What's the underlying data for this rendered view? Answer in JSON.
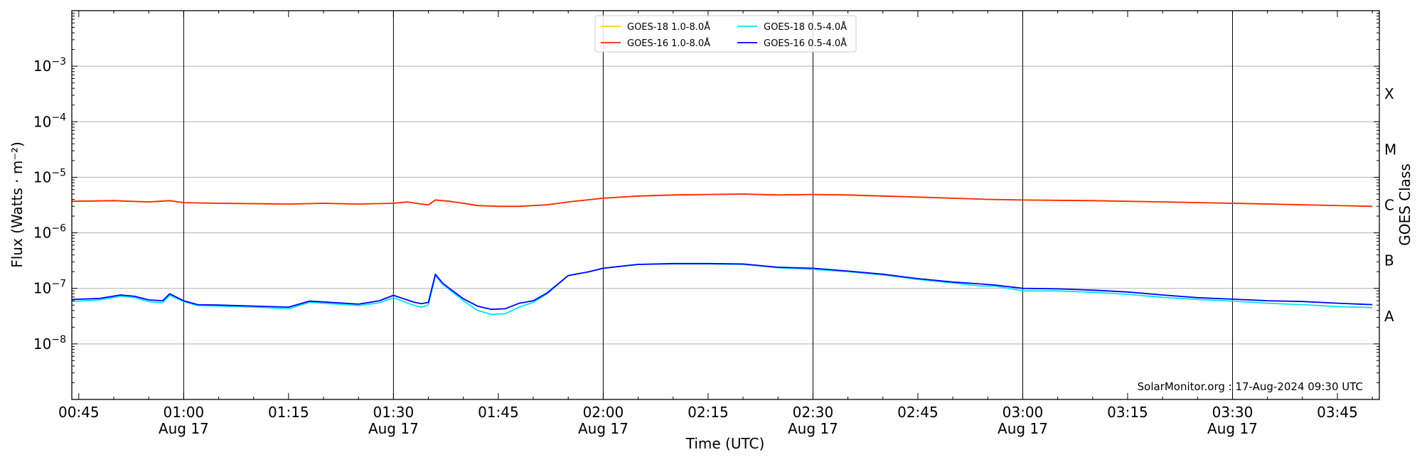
{
  "chart_data": {
    "type": "line",
    "title": "",
    "xlabel": "Time (UTC)",
    "ylabel": "Flux (Watts · m⁻²)",
    "right_ylabel": "GOES Class",
    "yscale": "log",
    "xlim": [
      "00:44",
      "03:51"
    ],
    "ylim": [
      1e-09,
      0.01
    ],
    "grid": "horizontal at decades",
    "legend_placement": "top-center",
    "x_ticks": [
      {
        "t": "00:45",
        "label": "00:45",
        "date": ""
      },
      {
        "t": "01:00",
        "label": "01:00",
        "date": "Aug 17"
      },
      {
        "t": "01:15",
        "label": "01:15",
        "date": ""
      },
      {
        "t": "01:30",
        "label": "01:30",
        "date": "Aug 17"
      },
      {
        "t": "01:45",
        "label": "01:45",
        "date": ""
      },
      {
        "t": "02:00",
        "label": "02:00",
        "date": "Aug 17"
      },
      {
        "t": "02:15",
        "label": "02:15",
        "date": ""
      },
      {
        "t": "02:30",
        "label": "02:30",
        "date": "Aug 17"
      },
      {
        "t": "02:45",
        "label": "02:45",
        "date": ""
      },
      {
        "t": "03:00",
        "label": "03:00",
        "date": "Aug 17"
      },
      {
        "t": "03:15",
        "label": "03:15",
        "date": ""
      },
      {
        "t": "03:30",
        "label": "03:30",
        "date": "Aug 17"
      },
      {
        "t": "03:45",
        "label": "03:45",
        "date": ""
      }
    ],
    "vertical_lines": [
      "01:00",
      "01:30",
      "02:00",
      "02:30",
      "03:00",
      "03:30"
    ],
    "y_ticks": [
      {
        "v": 1e-08,
        "base": "10",
        "exp": "−8"
      },
      {
        "v": 1e-07,
        "base": "10",
        "exp": "−7"
      },
      {
        "v": 1e-06,
        "base": "10",
        "exp": "−6"
      },
      {
        "v": 1e-05,
        "base": "10",
        "exp": "−5"
      },
      {
        "v": 0.0001,
        "base": "10",
        "exp": "−4"
      },
      {
        "v": 0.001,
        "base": "10",
        "exp": "−3"
      }
    ],
    "goes_classes": [
      {
        "label": "A",
        "v": 3.16e-08
      },
      {
        "label": "B",
        "v": 3.16e-07
      },
      {
        "label": "C",
        "v": 3.16e-06
      },
      {
        "label": "M",
        "v": 3.16e-05
      },
      {
        "label": "X",
        "v": 0.000316
      }
    ],
    "series": [
      {
        "name": "GOES-18 1.0-8.0Å",
        "color": "#ffd700",
        "x": [
          "00:44",
          "00:50",
          "00:55",
          "00:58",
          "01:00",
          "01:05",
          "01:15",
          "01:20",
          "01:25",
          "01:30",
          "01:32",
          "01:34",
          "01:35",
          "01:36",
          "01:38",
          "01:40",
          "01:42",
          "01:45",
          "01:48",
          "01:52",
          "01:55",
          "02:00",
          "02:05",
          "02:10",
          "02:15",
          "02:20",
          "02:25",
          "02:30",
          "02:35",
          "02:40",
          "02:45",
          "02:50",
          "02:55",
          "03:00",
          "03:10",
          "03:20",
          "03:30",
          "03:40",
          "03:50"
        ],
        "y": [
          3.7e-06,
          3.8e-06,
          3.6e-06,
          3.8e-06,
          3.5e-06,
          3.4e-06,
          3.3e-06,
          3.4e-06,
          3.3e-06,
          3.4e-06,
          3.6e-06,
          3.3e-06,
          3.2e-06,
          3.9e-06,
          3.7e-06,
          3.4e-06,
          3.1e-06,
          3e-06,
          3e-06,
          3.2e-06,
          3.6e-06,
          4.2e-06,
          4.6e-06,
          4.8e-06,
          4.9e-06,
          5e-06,
          4.8e-06,
          4.9e-06,
          4.8e-06,
          4.6e-06,
          4.4e-06,
          4.2e-06,
          4e-06,
          3.9e-06,
          3.8e-06,
          3.6e-06,
          3.4e-06,
          3.2e-06,
          3e-06
        ]
      },
      {
        "name": "GOES-16 1.0-8.0Å",
        "color": "#ff2600",
        "x": [
          "00:44",
          "00:50",
          "00:55",
          "00:58",
          "01:00",
          "01:05",
          "01:15",
          "01:20",
          "01:25",
          "01:30",
          "01:32",
          "01:34",
          "01:35",
          "01:36",
          "01:38",
          "01:40",
          "01:42",
          "01:45",
          "01:48",
          "01:52",
          "01:55",
          "02:00",
          "02:05",
          "02:10",
          "02:15",
          "02:20",
          "02:25",
          "02:30",
          "02:35",
          "02:40",
          "02:45",
          "02:50",
          "02:55",
          "03:00",
          "03:10",
          "03:20",
          "03:30",
          "03:40",
          "03:50"
        ],
        "y": [
          3.7e-06,
          3.8e-06,
          3.6e-06,
          3.8e-06,
          3.5e-06,
          3.4e-06,
          3.3e-06,
          3.4e-06,
          3.3e-06,
          3.4e-06,
          3.6e-06,
          3.3e-06,
          3.2e-06,
          3.9e-06,
          3.7e-06,
          3.4e-06,
          3.1e-06,
          3e-06,
          3e-06,
          3.2e-06,
          3.6e-06,
          4.2e-06,
          4.6e-06,
          4.8e-06,
          4.9e-06,
          5e-06,
          4.8e-06,
          4.9e-06,
          4.8e-06,
          4.6e-06,
          4.4e-06,
          4.2e-06,
          4e-06,
          3.9e-06,
          3.8e-06,
          3.6e-06,
          3.4e-06,
          3.2e-06,
          3e-06
        ]
      },
      {
        "name": "GOES-18 0.5-4.0Å",
        "color": "#00e5ff",
        "x": [
          "00:44",
          "00:48",
          "00:51",
          "00:53",
          "00:55",
          "00:57",
          "00:58",
          "01:00",
          "01:02",
          "01:05",
          "01:10",
          "01:15",
          "01:18",
          "01:20",
          "01:25",
          "01:28",
          "01:30",
          "01:33",
          "01:34",
          "01:35",
          "01:36",
          "01:37",
          "01:38",
          "01:40",
          "01:42",
          "01:44",
          "01:46",
          "01:48",
          "01:50",
          "01:52",
          "01:55",
          "01:58",
          "02:00",
          "02:05",
          "02:10",
          "02:15",
          "02:20",
          "02:25",
          "02:30",
          "02:35",
          "02:40",
          "02:45",
          "02:50",
          "02:54",
          "02:56",
          "03:00",
          "03:05",
          "03:10",
          "03:15",
          "03:20",
          "03:25",
          "03:30",
          "03:35",
          "03:40",
          "03:45",
          "03:50"
        ],
        "y": [
          5.8e-08,
          6.2e-08,
          7.2e-08,
          6.8e-08,
          5.8e-08,
          5.5e-08,
          7.5e-08,
          5.8e-08,
          4.9e-08,
          4.8e-08,
          4.6e-08,
          4.3e-08,
          5.6e-08,
          5.4e-08,
          4.9e-08,
          5.5e-08,
          6.8e-08,
          4.9e-08,
          4.6e-08,
          5e-08,
          1.7e-07,
          1.2e-07,
          9.5e-08,
          6e-08,
          4e-08,
          3.4e-08,
          3.5e-08,
          4.6e-08,
          5.6e-08,
          8e-08,
          1.7e-07,
          2e-07,
          2.3e-07,
          2.7e-07,
          2.75e-07,
          2.75e-07,
          2.7e-07,
          2.35e-07,
          2.2e-07,
          2e-07,
          1.75e-07,
          1.45e-07,
          1.25e-07,
          1.1e-07,
          1.1e-07,
          9e-08,
          9e-08,
          8.5e-08,
          7.8e-08,
          6.9e-08,
          6.3e-08,
          5.9e-08,
          5.4e-08,
          5.1e-08,
          4.7e-08,
          4.5e-08
        ]
      },
      {
        "name": "GOES-16 0.5-4.0Å",
        "color": "#0000ff",
        "x": [
          "00:44",
          "00:48",
          "00:51",
          "00:53",
          "00:55",
          "00:57",
          "00:58",
          "01:00",
          "01:02",
          "01:05",
          "01:10",
          "01:15",
          "01:18",
          "01:20",
          "01:25",
          "01:28",
          "01:30",
          "01:33",
          "01:34",
          "01:35",
          "01:36",
          "01:37",
          "01:38",
          "01:40",
          "01:42",
          "01:44",
          "01:46",
          "01:48",
          "01:50",
          "01:52",
          "01:55",
          "01:58",
          "02:00",
          "02:05",
          "02:10",
          "02:15",
          "02:20",
          "02:25",
          "02:30",
          "02:35",
          "02:40",
          "02:45",
          "02:50",
          "02:54",
          "02:56",
          "03:00",
          "03:05",
          "03:10",
          "03:15",
          "03:20",
          "03:25",
          "03:30",
          "03:35",
          "03:40",
          "03:45",
          "03:50"
        ],
        "y": [
          6.3e-08,
          6.6e-08,
          7.6e-08,
          7.2e-08,
          6.2e-08,
          6e-08,
          8e-08,
          6e-08,
          5.1e-08,
          5e-08,
          4.8e-08,
          4.6e-08,
          5.9e-08,
          5.7e-08,
          5.2e-08,
          6e-08,
          7.5e-08,
          5.6e-08,
          5.3e-08,
          5.6e-08,
          1.8e-07,
          1.25e-07,
          1e-07,
          6.5e-08,
          4.8e-08,
          4.2e-08,
          4.3e-08,
          5.4e-08,
          6e-08,
          8.3e-08,
          1.7e-07,
          2e-07,
          2.3e-07,
          2.7e-07,
          2.8e-07,
          2.8e-07,
          2.75e-07,
          2.4e-07,
          2.3e-07,
          2.05e-07,
          1.8e-07,
          1.5e-07,
          1.3e-07,
          1.2e-07,
          1.15e-07,
          1e-07,
          9.8e-08,
          9.3e-08,
          8.6e-08,
          7.6e-08,
          6.8e-08,
          6.4e-08,
          6e-08,
          5.8e-08,
          5.4e-08,
          5.1e-08
        ]
      }
    ],
    "annotation": "SolarMonitor.org : 17-Aug-2024 09:30 UTC"
  }
}
